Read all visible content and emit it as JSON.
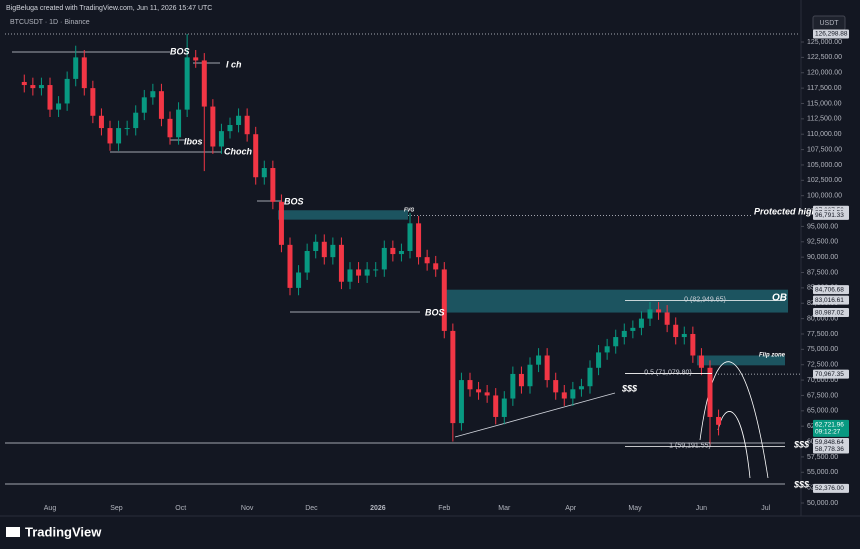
{
  "header": {
    "credit": "BigBeluga created with TradingView.com, Jun 11, 2026 15:47 UTC",
    "symbol": "BTCUSDT · 1D · Binance",
    "currency": "USDT",
    "logo": "TradingView"
  },
  "chart_data": {
    "type": "candlestick",
    "open": [
      118500,
      118000,
      117500,
      118000,
      114000,
      115000,
      119000,
      122500,
      117500,
      113000,
      111000,
      108500,
      111000,
      111000,
      113500,
      116000,
      117000,
      112500,
      109500,
      114000,
      122500,
      122000,
      114500,
      108000,
      110500,
      111500,
      113000,
      110000,
      103000,
      104500,
      99000,
      92000,
      85000,
      87500,
      91000,
      92500,
      90000,
      92000,
      86000,
      88000,
      87000,
      88000,
      88000,
      91500,
      90500,
      91000,
      95500,
      90000,
      89000,
      88000,
      78000,
      63000,
      70000,
      68500,
      68000,
      67500,
      64000,
      67000,
      71000,
      69000,
      72500,
      74000,
      70000,
      68000,
      67000,
      68500,
      69000,
      72000,
      74500,
      75500,
      77000,
      78000,
      78500,
      80000,
      81500,
      81000,
      79000,
      77000,
      77500,
      74000,
      72000,
      64000
    ],
    "high": [
      119700,
      119200,
      119200,
      119200,
      116200,
      120200,
      124400,
      123700,
      118700,
      114200,
      112200,
      112200,
      112200,
      114700,
      117200,
      118200,
      118200,
      113700,
      115200,
      126300,
      123700,
      123200,
      115700,
      111700,
      112700,
      114200,
      114200,
      111200,
      105700,
      105700,
      100200,
      93200,
      88700,
      92200,
      93700,
      93700,
      93200,
      93200,
      89200,
      89200,
      89200,
      89200,
      92700,
      92700,
      92200,
      97200,
      96700,
      91200,
      90200,
      89200,
      79200,
      71200,
      71200,
      69700,
      69200,
      68700,
      68200,
      72200,
      72200,
      73700,
      75200,
      75200,
      71200,
      69200,
      69700,
      70200,
      73200,
      75700,
      76700,
      78200,
      79200,
      79700,
      81200,
      82700,
      82700,
      82200,
      80200,
      78700,
      78700,
      75200,
      73200,
      65200
    ],
    "low": [
      116800,
      116300,
      116300,
      112800,
      112800,
      113800,
      117800,
      116300,
      111800,
      109800,
      107300,
      107300,
      109800,
      109800,
      112300,
      114800,
      111300,
      108300,
      108300,
      112800,
      120800,
      104000,
      106800,
      106800,
      109300,
      110300,
      108800,
      101800,
      101800,
      97800,
      90800,
      83800,
      83800,
      86300,
      89800,
      88800,
      88800,
      84800,
      84800,
      85800,
      85800,
      86800,
      86800,
      89300,
      89300,
      89800,
      88800,
      87800,
      86800,
      76800,
      60000,
      61800,
      67300,
      66800,
      66300,
      62800,
      62800,
      65800,
      67800,
      67800,
      71300,
      68800,
      66800,
      65800,
      65800,
      67300,
      67800,
      70800,
      73300,
      74300,
      75800,
      76800,
      77300,
      78800,
      79800,
      77800,
      75800,
      75800,
      72800,
      70800,
      59200,
      61000
    ],
    "close": [
      118000,
      117500,
      118000,
      114000,
      115000,
      119000,
      122500,
      117500,
      113000,
      111000,
      108500,
      111000,
      111000,
      113500,
      116000,
      117000,
      112500,
      109500,
      114000,
      122500,
      122000,
      114500,
      108000,
      110500,
      111500,
      113000,
      110000,
      103000,
      104500,
      99000,
      92000,
      85000,
      87500,
      91000,
      92500,
      90000,
      92000,
      86000,
      88000,
      87000,
      88000,
      88000,
      91500,
      90500,
      91000,
      95500,
      90000,
      89000,
      88000,
      78000,
      63000,
      70000,
      68500,
      68000,
      67500,
      64000,
      67000,
      71000,
      69000,
      72500,
      74000,
      70000,
      68000,
      67000,
      68500,
      69000,
      72000,
      74500,
      75500,
      77000,
      78000,
      78500,
      80000,
      81500,
      81000,
      79000,
      77000,
      77500,
      74000,
      72000,
      64000,
      62722
    ],
    "up_color": "#089981",
    "down_color": "#f23645",
    "xlim": [
      -2.25,
      90.5
    ],
    "xticks": [
      {
        "value": 3,
        "label": "Aug"
      },
      {
        "value": 10.75,
        "label": "Sep"
      },
      {
        "value": 18.25,
        "label": "Oct"
      },
      {
        "value": 26,
        "label": "Nov"
      },
      {
        "value": 33.5,
        "label": "Dec"
      },
      {
        "value": 41.25,
        "label": "2026"
      },
      {
        "value": 49,
        "label": "Feb"
      },
      {
        "value": 56,
        "label": "Mar"
      },
      {
        "value": 63.75,
        "label": "Apr"
      },
      {
        "value": 71.25,
        "label": "May"
      },
      {
        "value": 79,
        "label": "Jun"
      },
      {
        "value": 86.5,
        "label": "Jul"
      }
    ],
    "ylim": [
      48050,
      127280
    ],
    "yticks": [
      {
        "value": 50000,
        "label": "50,000.00"
      },
      {
        "value": 52500,
        "label": "52,500.00"
      },
      {
        "value": 55000,
        "label": "55,000.00"
      },
      {
        "value": 57500,
        "label": "57,500.00"
      },
      {
        "value": 60000,
        "label": "60,000.00"
      },
      {
        "value": 62500,
        "label": "62,500.00"
      },
      {
        "value": 65000,
        "label": "65,000.00"
      },
      {
        "value": 67500,
        "label": "67,500.00"
      },
      {
        "value": 70000,
        "label": "70,000.00"
      },
      {
        "value": 72500,
        "label": "72,500.00"
      },
      {
        "value": 75000,
        "label": "75,000.00"
      },
      {
        "value": 77500,
        "label": "77,500.00"
      },
      {
        "value": 80000,
        "label": "80,000.00"
      },
      {
        "value": 82500,
        "label": "82,500.00"
      },
      {
        "value": 85000,
        "label": "85,000.00"
      },
      {
        "value": 87500,
        "label": "87,500.00"
      },
      {
        "value": 90000,
        "label": "90,000.00"
      },
      {
        "value": 92500,
        "label": "92,500.00"
      },
      {
        "value": 95000,
        "label": "95,000.00"
      },
      {
        "value": 97500,
        "label": "97,500.00"
      },
      {
        "value": 100000,
        "label": "100,000.00"
      },
      {
        "value": 102500,
        "label": "102,500.00"
      },
      {
        "value": 105000,
        "label": "105,000.00"
      },
      {
        "value": 107500,
        "label": "107,500.00"
      },
      {
        "value": 110000,
        "label": "110,000.00"
      },
      {
        "value": 112500,
        "label": "112,500.00"
      },
      {
        "value": 115000,
        "label": "115,000.00"
      },
      {
        "value": 117500,
        "label": "117,500.00"
      },
      {
        "value": 120000,
        "label": "120,000.00"
      },
      {
        "value": 122500,
        "label": "122,500.00"
      },
      {
        "value": 125000,
        "label": "125,000.00"
      }
    ],
    "price_labels": [
      {
        "value": 126298.88,
        "label": "126,298.88"
      },
      {
        "value": 97627.59,
        "label": "97,627.59"
      },
      {
        "value": 97204.51,
        "label": "97,204.51"
      },
      {
        "value": 96791.33,
        "label": "96,791.33"
      },
      {
        "value": 84706.68,
        "label": "84,706.68"
      },
      {
        "value": 83016.61,
        "label": "83,016.61"
      },
      {
        "value": 80987.02,
        "label": "80,987.02"
      },
      {
        "value": 70967.35,
        "label": "70,967.35"
      },
      {
        "value": 59848.64,
        "label": "59,848.64"
      },
      {
        "value": 58778.36,
        "label": "58,778.36"
      },
      {
        "value": 52376.0,
        "label": "52,376.00"
      }
    ],
    "last_price": {
      "value": 62721.96,
      "label": "62,721.96",
      "countdown": "09:12:27"
    },
    "fib_levels": [
      {
        "value": 82949.65,
        "label": "0 (82,949.65)"
      },
      {
        "value": 71079.8,
        "label": "0.5 (71,079.80)"
      },
      {
        "value": 59191.55,
        "label": "1 (59,191.55)"
      }
    ],
    "annotations": [
      "BOS",
      "I ch",
      "Ibos",
      "Choch",
      "BOS",
      "FVG",
      "Protected high",
      "BOS",
      "OB",
      "Flip zone",
      "$$$",
      "$$$",
      "$$$"
    ]
  }
}
